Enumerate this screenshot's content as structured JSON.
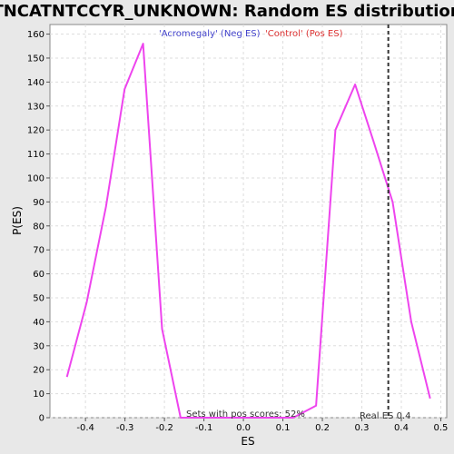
{
  "chart_data": {
    "type": "line",
    "title": "TNCATNTCCYR_UNKNOWN: Random ES distribution",
    "xlabel": "ES",
    "ylabel": "P(ES)",
    "xlim": [
      -0.49,
      0.515
    ],
    "ylim": [
      0,
      164
    ],
    "x_ticks": [
      -0.4,
      -0.3,
      -0.2,
      -0.1,
      0.0,
      0.1,
      0.2,
      0.3,
      0.4,
      0.5
    ],
    "x_tick_labels": [
      "-0.4",
      "-0.3",
      "-0.2",
      "-0.1",
      "0.0",
      "0.1",
      "0.2",
      "0.3",
      "0.4",
      "0.5"
    ],
    "y_ticks": [
      0,
      10,
      20,
      30,
      40,
      50,
      60,
      70,
      80,
      90,
      100,
      110,
      120,
      130,
      140,
      150,
      160
    ],
    "y_tick_labels": [
      "0",
      "10",
      "20",
      "30",
      "40",
      "50",
      "60",
      "70",
      "80",
      "90",
      "100",
      "110",
      "120",
      "130",
      "140",
      "150",
      "160"
    ],
    "grid": true,
    "series": [
      {
        "color": "#ee44ee",
        "x": [
          -0.447,
          -0.397,
          -0.348,
          -0.301,
          -0.254,
          -0.206,
          -0.159,
          -0.111,
          -0.064,
          -0.016,
          0.031,
          0.079,
          0.126,
          0.184,
          0.233,
          0.283,
          0.33,
          0.378,
          0.425,
          0.473
        ],
        "y": [
          17,
          48,
          88,
          137,
          156,
          37,
          0,
          0,
          0,
          0,
          0,
          0,
          0,
          5,
          120,
          139,
          115,
          90,
          40,
          8
        ]
      }
    ],
    "vline": {
      "x": 0.367,
      "style": "dashed",
      "color": "#333333"
    },
    "legend": [
      {
        "label": "'Acromegaly' (Neg ES)",
        "color": "#4444cc"
      },
      {
        "label": "'Control' (Pos ES)",
        "color": "#dd3333"
      }
    ],
    "legend_position": "top-center",
    "annotations": {
      "pos_scores": "Sets with pos scores: 52%",
      "real_es": "Real ES 0.4"
    }
  }
}
